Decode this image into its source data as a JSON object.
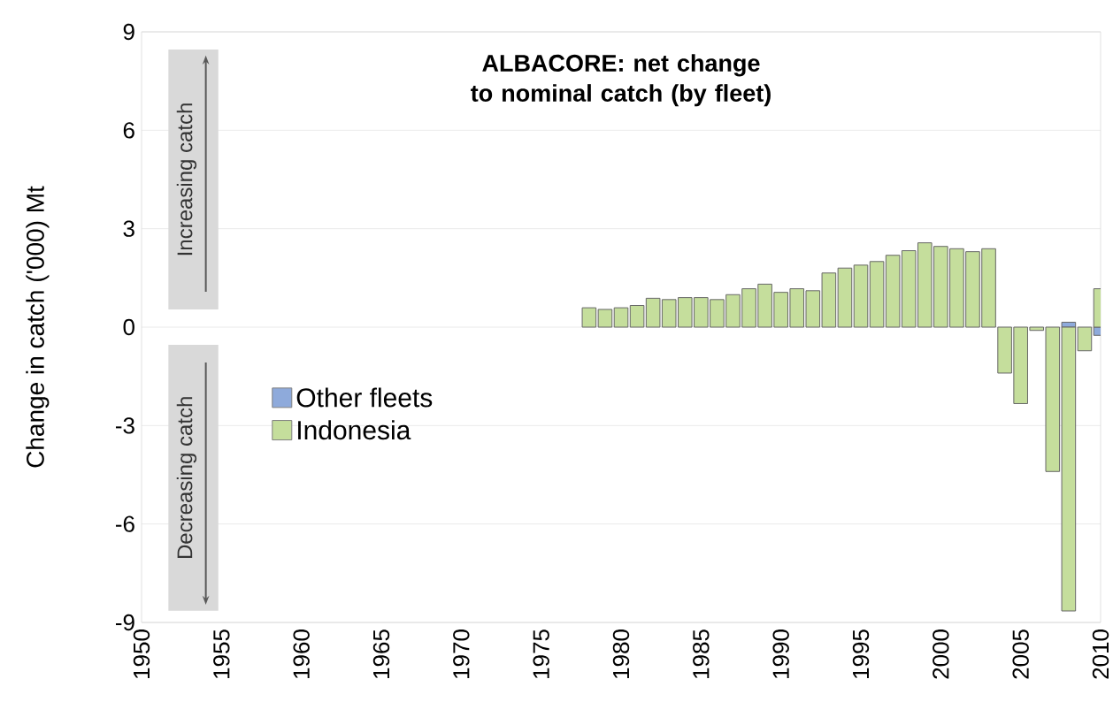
{
  "chart_data": {
    "type": "bar",
    "title": "ALBACORE: net change to nominal catch (by fleet)",
    "ylabel": "Change in catch ('000) Mt",
    "x": [
      1978,
      1979,
      1980,
      1981,
      1982,
      1983,
      1984,
      1985,
      1986,
      1987,
      1988,
      1989,
      1990,
      1991,
      1992,
      1993,
      1994,
      1995,
      1996,
      1997,
      1998,
      1999,
      2000,
      2001,
      2002,
      2003,
      2004,
      2005,
      2006,
      2007,
      2008,
      2009,
      2010
    ],
    "series": [
      {
        "name": "Other fleets",
        "color": "#8eaadb",
        "values": [
          null,
          null,
          null,
          null,
          null,
          null,
          null,
          null,
          null,
          null,
          null,
          null,
          null,
          null,
          null,
          null,
          null,
          null,
          null,
          null,
          null,
          null,
          null,
          null,
          null,
          null,
          null,
          null,
          null,
          null,
          0.15,
          null,
          -0.25
        ]
      },
      {
        "name": "Indonesia",
        "color": "#c5de9c",
        "values": [
          0.59,
          0.54,
          0.59,
          0.66,
          0.88,
          0.84,
          0.9,
          0.9,
          0.84,
          0.99,
          1.17,
          1.31,
          1.06,
          1.17,
          1.11,
          1.65,
          1.8,
          1.89,
          2.0,
          2.19,
          2.33,
          2.57,
          2.46,
          2.39,
          2.3,
          2.39,
          -1.4,
          -2.33,
          -0.1,
          -4.4,
          -8.65,
          -0.72,
          1.17
        ]
      }
    ],
    "stacked": true,
    "xlim": [
      1950,
      2010
    ],
    "xticks": [
      1950,
      1955,
      1960,
      1965,
      1970,
      1975,
      1980,
      1985,
      1990,
      1995,
      2000,
      2005,
      2010
    ],
    "ylim": [
      -9,
      9
    ],
    "yticks": [
      -9,
      -6,
      -3,
      0,
      3,
      6,
      9
    ],
    "grid": "y",
    "legend": "left",
    "annotations": [
      "Increasing catch",
      "Decreasing catch"
    ]
  }
}
